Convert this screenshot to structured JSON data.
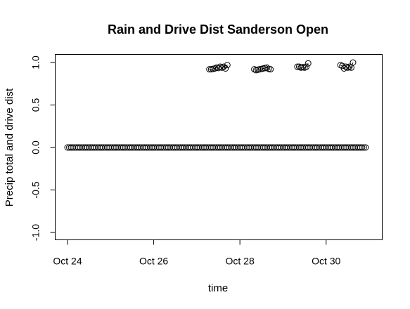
{
  "chart_data": {
    "type": "scatter",
    "title": "Rain and Drive Dist Sanderson Open",
    "xlabel": "time",
    "ylabel": "Precip total and drive dist",
    "xlim": [
      "2013-10-24",
      "2013-10-31"
    ],
    "ylim": [
      -1.0,
      1.0
    ],
    "x_ticks": [
      {
        "value": "2013-10-24",
        "label": "Oct 24"
      },
      {
        "value": "2013-10-26",
        "label": "Oct 26"
      },
      {
        "value": "2013-10-28",
        "label": "Oct 28"
      },
      {
        "value": "2013-10-30",
        "label": "Oct 30"
      }
    ],
    "y_ticks": [
      {
        "value": -1.0,
        "label": "-1.0"
      },
      {
        "value": -0.5,
        "label": "-0.5"
      },
      {
        "value": 0.0,
        "label": "0.0"
      },
      {
        "value": 0.5,
        "label": "0.5"
      },
      {
        "value": 1.0,
        "label": "1.0"
      }
    ],
    "grid": false,
    "series": [
      {
        "style": "points",
        "constant_y": 0.0,
        "x_start": "2013-10-24 00:00",
        "x_end": "2013-10-30 22:00",
        "x_step_hours": 1
      },
      {
        "style": "lines+points",
        "points": [
          {
            "x": "2013-10-27 07:00",
            "y": 0.92
          },
          {
            "x": "2013-10-27 08:00",
            "y": 0.92
          },
          {
            "x": "2013-10-27 09:00",
            "y": 0.925
          },
          {
            "x": "2013-10-27 10:00",
            "y": 0.93
          },
          {
            "x": "2013-10-27 11:00",
            "y": 0.94
          },
          {
            "x": "2013-10-27 12:00",
            "y": 0.935
          },
          {
            "x": "2013-10-27 13:00",
            "y": 0.95
          },
          {
            "x": "2013-10-27 14:00",
            "y": 0.94
          },
          {
            "x": "2013-10-27 15:00",
            "y": 0.95
          },
          {
            "x": "2013-10-27 16:00",
            "y": 0.93
          },
          {
            "x": "2013-10-27 17:00",
            "y": 0.97
          },
          {
            "x": "2013-10-28 08:00",
            "y": 0.92
          },
          {
            "x": "2013-10-28 09:00",
            "y": 0.91
          },
          {
            "x": "2013-10-28 10:00",
            "y": 0.915
          },
          {
            "x": "2013-10-28 11:00",
            "y": 0.92
          },
          {
            "x": "2013-10-28 12:00",
            "y": 0.925
          },
          {
            "x": "2013-10-28 13:00",
            "y": 0.93
          },
          {
            "x": "2013-10-28 14:00",
            "y": 0.935
          },
          {
            "x": "2013-10-28 15:00",
            "y": 0.94
          },
          {
            "x": "2013-10-28 16:00",
            "y": 0.925
          },
          {
            "x": "2013-10-28 17:00",
            "y": 0.92
          },
          {
            "x": "2013-10-29 08:00",
            "y": 0.95
          },
          {
            "x": "2013-10-29 09:00",
            "y": 0.95
          },
          {
            "x": "2013-10-29 10:00",
            "y": 0.94
          },
          {
            "x": "2013-10-29 11:00",
            "y": 0.945
          },
          {
            "x": "2013-10-29 12:00",
            "y": 0.94
          },
          {
            "x": "2013-10-29 13:00",
            "y": 0.95
          },
          {
            "x": "2013-10-29 14:00",
            "y": 0.99
          },
          {
            "x": "2013-10-30 08:00",
            "y": 0.97
          },
          {
            "x": "2013-10-30 09:00",
            "y": 0.96
          },
          {
            "x": "2013-10-30 10:00",
            "y": 0.93
          },
          {
            "x": "2013-10-30 11:00",
            "y": 0.95
          },
          {
            "x": "2013-10-30 12:00",
            "y": 0.94
          },
          {
            "x": "2013-10-30 13:00",
            "y": 0.95
          },
          {
            "x": "2013-10-30 14:00",
            "y": 0.94
          },
          {
            "x": "2013-10-30 15:00",
            "y": 1.0
          }
        ]
      }
    ]
  }
}
